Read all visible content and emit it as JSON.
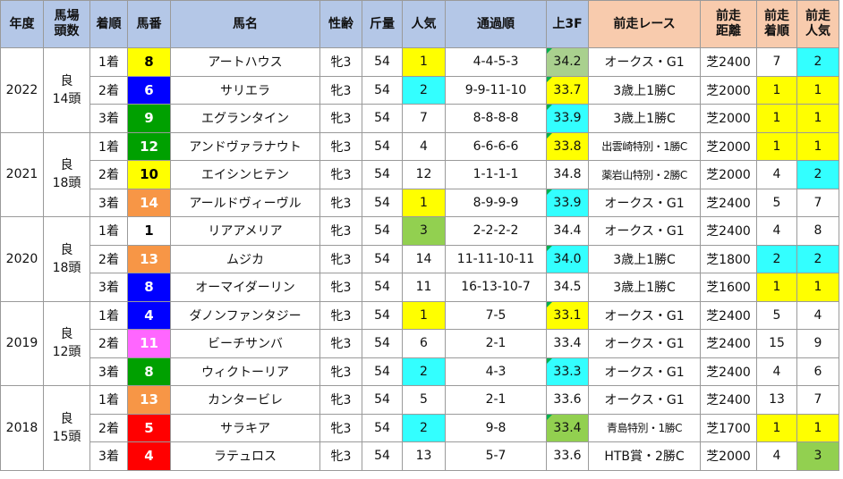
{
  "headers": {
    "year": "年度",
    "track_line1": "馬場",
    "track_line2": "頭数",
    "finish": "着順",
    "number": "馬番",
    "name": "馬名",
    "sexage": "性齢",
    "weight": "斤量",
    "pop": "人気",
    "passing": "通過順",
    "last3f": "上3F",
    "prev_race": "前走レース",
    "prev_dist_line1": "前走",
    "prev_dist_line2": "距離",
    "prev_finish_line1": "前走",
    "prev_finish_line2": "着順",
    "prev_pop_line1": "前走",
    "prev_pop_line2": "人気"
  },
  "colors": {
    "header_blue": "#b4c7e7",
    "header_salmon": "#f8cbad",
    "highlight_yellow": "#ffff00",
    "highlight_cyan": "#33ffff",
    "highlight_green": "#92d050",
    "highlight_sage": "#a9d08e",
    "triangle_marker": "#00b050"
  },
  "years": [
    {
      "year": "2022",
      "condition": "良",
      "runners": "14頭",
      "rows": [
        {
          "finish": "1着",
          "number": "8",
          "num_bg": "#ffff00",
          "num_fg": "#000000",
          "name": "アートハウス",
          "sexage": "牝3",
          "weight": "54",
          "pop": "1",
          "pop_bg": "#ffff00",
          "passing": "4-4-5-3",
          "last3f": "34.2",
          "l3_bg": "#a9d08e",
          "l3_tri": true,
          "prev_race": "オークス・G1",
          "prev_race_small": false,
          "prev_dist": "芝2400",
          "prev_finish": "7",
          "pf_bg": "",
          "prev_pop": "2",
          "pp_bg": "#33ffff"
        },
        {
          "finish": "2着",
          "number": "6",
          "num_bg": "#0000ff",
          "num_fg": "#ffffff",
          "name": "サリエラ",
          "sexage": "牝3",
          "weight": "54",
          "pop": "2",
          "pop_bg": "#33ffff",
          "passing": "9-9-11-10",
          "last3f": "33.7",
          "l3_bg": "#ffff00",
          "l3_tri": true,
          "prev_race": "3歳上1勝C",
          "prev_race_small": false,
          "prev_dist": "芝2000",
          "prev_finish": "1",
          "pf_bg": "#ffff00",
          "prev_pop": "1",
          "pp_bg": "#ffff00"
        },
        {
          "finish": "3着",
          "number": "9",
          "num_bg": "#00a000",
          "num_fg": "#ffffff",
          "name": "エグランタイン",
          "sexage": "牝3",
          "weight": "54",
          "pop": "7",
          "pop_bg": "",
          "passing": "8-8-8-8",
          "last3f": "33.9",
          "l3_bg": "#33ffff",
          "l3_tri": true,
          "prev_race": "3歳上1勝C",
          "prev_race_small": false,
          "prev_dist": "芝2000",
          "prev_finish": "1",
          "pf_bg": "#ffff00",
          "prev_pop": "1",
          "pp_bg": "#ffff00"
        }
      ]
    },
    {
      "year": "2021",
      "condition": "良",
      "runners": "18頭",
      "rows": [
        {
          "finish": "1着",
          "number": "12",
          "num_bg": "#00a000",
          "num_fg": "#ffffff",
          "name": "アンドヴァラナウト",
          "sexage": "牝3",
          "weight": "54",
          "pop": "4",
          "pop_bg": "",
          "passing": "6-6-6-6",
          "last3f": "33.8",
          "l3_bg": "#ffff00",
          "l3_tri": true,
          "prev_race": "出雲崎特別・1勝C",
          "prev_race_small": true,
          "prev_dist": "芝2000",
          "prev_finish": "1",
          "pf_bg": "#ffff00",
          "prev_pop": "1",
          "pp_bg": "#ffff00"
        },
        {
          "finish": "2着",
          "number": "10",
          "num_bg": "#ffff00",
          "num_fg": "#000000",
          "name": "エイシンヒテン",
          "sexage": "牝3",
          "weight": "54",
          "pop": "12",
          "pop_bg": "",
          "passing": "1-1-1-1",
          "last3f": "34.8",
          "l3_bg": "",
          "l3_tri": false,
          "prev_race": "薬岩山特別・2勝C",
          "prev_race_small": true,
          "prev_dist": "芝2000",
          "prev_finish": "4",
          "pf_bg": "",
          "prev_pop": "2",
          "pp_bg": "#33ffff"
        },
        {
          "finish": "3着",
          "number": "14",
          "num_bg": "#f79646",
          "num_fg": "#ffffff",
          "name": "アールドヴィーヴル",
          "sexage": "牝3",
          "weight": "54",
          "pop": "1",
          "pop_bg": "#ffff00",
          "passing": "8-9-9-9",
          "last3f": "33.9",
          "l3_bg": "#33ffff",
          "l3_tri": true,
          "prev_race": "オークス・G1",
          "prev_race_small": false,
          "prev_dist": "芝2400",
          "prev_finish": "5",
          "pf_bg": "",
          "prev_pop": "7",
          "pp_bg": ""
        }
      ]
    },
    {
      "year": "2020",
      "condition": "良",
      "runners": "18頭",
      "rows": [
        {
          "finish": "1着",
          "number": "1",
          "num_bg": "#ffffff",
          "num_fg": "#000000",
          "name": "リアアメリア",
          "sexage": "牝3",
          "weight": "54",
          "pop": "3",
          "pop_bg": "#92d050",
          "passing": "2-2-2-2",
          "last3f": "34.4",
          "l3_bg": "",
          "l3_tri": false,
          "prev_race": "オークス・G1",
          "prev_race_small": false,
          "prev_dist": "芝2400",
          "prev_finish": "4",
          "pf_bg": "",
          "prev_pop": "8",
          "pp_bg": ""
        },
        {
          "finish": "2着",
          "number": "13",
          "num_bg": "#f79646",
          "num_fg": "#ffffff",
          "name": "ムジカ",
          "sexage": "牝3",
          "weight": "54",
          "pop": "14",
          "pop_bg": "",
          "passing": "11-11-10-11",
          "last3f": "34.0",
          "l3_bg": "#33ffff",
          "l3_tri": true,
          "prev_race": "3歳上1勝C",
          "prev_race_small": false,
          "prev_dist": "芝1800",
          "prev_finish": "2",
          "pf_bg": "#33ffff",
          "prev_pop": "2",
          "pp_bg": "#33ffff"
        },
        {
          "finish": "3着",
          "number": "8",
          "num_bg": "#0000ff",
          "num_fg": "#ffffff",
          "name": "オーマイダーリン",
          "sexage": "牝3",
          "weight": "54",
          "pop": "11",
          "pop_bg": "",
          "passing": "16-13-10-7",
          "last3f": "34.5",
          "l3_bg": "",
          "l3_tri": false,
          "prev_race": "3歳上1勝C",
          "prev_race_small": false,
          "prev_dist": "芝1600",
          "prev_finish": "1",
          "pf_bg": "#ffff00",
          "prev_pop": "1",
          "pp_bg": "#ffff00"
        }
      ]
    },
    {
      "year": "2019",
      "condition": "良",
      "runners": "12頭",
      "rows": [
        {
          "finish": "1着",
          "number": "4",
          "num_bg": "#0000ff",
          "num_fg": "#ffffff",
          "name": "ダノンファンタジー",
          "sexage": "牝3",
          "weight": "54",
          "pop": "1",
          "pop_bg": "#ffff00",
          "passing": "7-5",
          "last3f": "33.1",
          "l3_bg": "#ffff00",
          "l3_tri": true,
          "prev_race": "オークス・G1",
          "prev_race_small": false,
          "prev_dist": "芝2400",
          "prev_finish": "5",
          "pf_bg": "",
          "prev_pop": "4",
          "pp_bg": ""
        },
        {
          "finish": "2着",
          "number": "11",
          "num_bg": "#ff66ff",
          "num_fg": "#ffffff",
          "name": "ビーチサンバ",
          "sexage": "牝3",
          "weight": "54",
          "pop": "6",
          "pop_bg": "",
          "passing": "2-1",
          "last3f": "33.4",
          "l3_bg": "",
          "l3_tri": false,
          "prev_race": "オークス・G1",
          "prev_race_small": false,
          "prev_dist": "芝2400",
          "prev_finish": "15",
          "pf_bg": "",
          "prev_pop": "9",
          "pp_bg": ""
        },
        {
          "finish": "3着",
          "number": "8",
          "num_bg": "#00a000",
          "num_fg": "#ffffff",
          "name": "ウィクトーリア",
          "sexage": "牝3",
          "weight": "54",
          "pop": "2",
          "pop_bg": "#33ffff",
          "passing": "4-3",
          "last3f": "33.3",
          "l3_bg": "#33ffff",
          "l3_tri": true,
          "prev_race": "オークス・G1",
          "prev_race_small": false,
          "prev_dist": "芝2400",
          "prev_finish": "4",
          "pf_bg": "",
          "prev_pop": "6",
          "pp_bg": ""
        }
      ]
    },
    {
      "year": "2018",
      "condition": "良",
      "runners": "15頭",
      "rows": [
        {
          "finish": "1着",
          "number": "13",
          "num_bg": "#f79646",
          "num_fg": "#ffffff",
          "name": "カンタービレ",
          "sexage": "牝3",
          "weight": "54",
          "pop": "5",
          "pop_bg": "",
          "passing": "2-1",
          "last3f": "33.6",
          "l3_bg": "",
          "l3_tri": false,
          "prev_race": "オークス・G1",
          "prev_race_small": false,
          "prev_dist": "芝2400",
          "prev_finish": "13",
          "pf_bg": "",
          "prev_pop": "7",
          "pp_bg": ""
        },
        {
          "finish": "2着",
          "number": "5",
          "num_bg": "#ff0000",
          "num_fg": "#ffffff",
          "name": "サラキア",
          "sexage": "牝3",
          "weight": "54",
          "pop": "2",
          "pop_bg": "#33ffff",
          "passing": "9-8",
          "last3f": "33.4",
          "l3_bg": "#92d050",
          "l3_tri": true,
          "prev_race": "青島特別・1勝C",
          "prev_race_small": true,
          "prev_dist": "芝1700",
          "prev_finish": "1",
          "pf_bg": "#ffff00",
          "prev_pop": "1",
          "pp_bg": "#ffff00"
        },
        {
          "finish": "3着",
          "number": "4",
          "num_bg": "#ff0000",
          "num_fg": "#ffffff",
          "name": "ラテュロス",
          "sexage": "牝3",
          "weight": "54",
          "pop": "13",
          "pop_bg": "",
          "passing": "5-7",
          "last3f": "33.6",
          "l3_bg": "",
          "l3_tri": false,
          "prev_race": "HTB賞・2勝C",
          "prev_race_small": false,
          "prev_dist": "芝2000",
          "prev_finish": "4",
          "pf_bg": "",
          "prev_pop": "3",
          "pp_bg": "#92d050"
        }
      ]
    }
  ]
}
